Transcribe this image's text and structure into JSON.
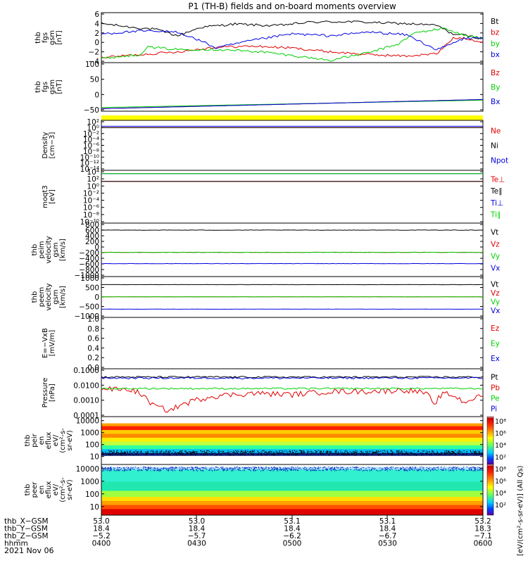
{
  "title": "P1 (TH-B) fields and on-board moments overview",
  "date": "2021 Nov 06",
  "colors": {
    "black": "#000000",
    "red": "#e00000",
    "green": "#00d000",
    "blue": "#0000e0",
    "yellow": "#ffff00"
  },
  "chart_data": [
    {
      "type": "line",
      "ylabel": [
        "thb",
        "fgs",
        "gsm",
        "[nT]"
      ],
      "ylim": [
        -4,
        6
      ],
      "yticks": [
        "6",
        "4",
        "2",
        "0",
        "−2",
        "−4"
      ],
      "series": [
        {
          "name": "Bt",
          "color": "black",
          "x": [
            0,
            0.08,
            0.14,
            0.2,
            0.26,
            0.35,
            0.45,
            0.55,
            0.65,
            0.75,
            0.82,
            0.88,
            0.92,
            0.96,
            1.0
          ],
          "values": [
            4.0,
            3.2,
            2.8,
            1.4,
            3.2,
            3.9,
            3.5,
            4.3,
            4.4,
            4.1,
            3.9,
            3.6,
            1.8,
            1.4,
            0.8
          ]
        },
        {
          "name": "bz",
          "color": "red",
          "x": [
            0,
            0.1,
            0.2,
            0.3,
            0.4,
            0.5,
            0.6,
            0.7,
            0.8,
            0.88,
            0.92,
            0.95,
            1.0
          ],
          "values": [
            -3.2,
            -2.6,
            -2.0,
            -1.0,
            -0.8,
            -1.2,
            -2.0,
            -2.6,
            -2.9,
            -2.4,
            0.8,
            1.0,
            0.0
          ]
        },
        {
          "name": "by",
          "color": "green",
          "x": [
            0,
            0.05,
            0.1,
            0.12,
            0.2,
            0.3,
            0.42,
            0.5,
            0.6,
            0.7,
            0.78,
            0.82,
            0.86,
            0.9,
            0.95,
            1.0
          ],
          "values": [
            -3.4,
            -3.0,
            -2.6,
            -1.0,
            -1.5,
            -1.5,
            -2.0,
            -2.8,
            -3.8,
            -2.2,
            -0.3,
            2.0,
            2.5,
            3.0,
            1.5,
            0.8
          ]
        },
        {
          "name": "bx",
          "color": "blue",
          "x": [
            0,
            0.1,
            0.2,
            0.27,
            0.3,
            0.4,
            0.5,
            0.6,
            0.7,
            0.8,
            0.88,
            0.95,
            1.0
          ],
          "values": [
            1.8,
            2.4,
            2.2,
            0.0,
            -1.2,
            0.5,
            1.8,
            1.4,
            2.2,
            1.6,
            -1.6,
            0.8,
            1.0
          ]
        }
      ]
    },
    {
      "type": "line",
      "ylabel": [
        "thb",
        "fgs",
        "gsm",
        "[nT]"
      ],
      "ylim": [
        -100,
        100
      ],
      "yticks": [
        "100",
        "50",
        "0",
        "−50"
      ],
      "series": [
        {
          "name": "Bz",
          "color": "red",
          "x": [
            0,
            1
          ],
          "values": [
            -95,
            -55
          ]
        },
        {
          "name": "By",
          "color": "green",
          "x": [
            0,
            1
          ],
          "values": [
            -90,
            -58
          ]
        },
        {
          "name": "Bx",
          "color": "blue",
          "x": [
            0,
            1
          ],
          "values": [
            -95,
            -55
          ]
        }
      ]
    },
    {
      "type": "heatmap",
      "ylabel": [],
      "note": "status bar",
      "color": "yellow"
    },
    {
      "type": "line",
      "ylabel": [
        "Density",
        "[cm−3]"
      ],
      "yscale": "log",
      "yticks": [
        "10²",
        "10⁰",
        "10⁻²",
        "10⁻⁴",
        "10⁻⁶",
        "10⁻⁸",
        "10⁻¹⁰",
        "10⁻¹²",
        "10⁻¹⁴"
      ],
      "series": [
        {
          "name": "Ne",
          "color": "red",
          "values": [
            1.0
          ]
        },
        {
          "name": "Ni",
          "color": "black",
          "values": [
            1.0
          ]
        },
        {
          "name": "Npot",
          "color": "blue",
          "values": [
            3.0
          ]
        }
      ]
    },
    {
      "type": "line",
      "ylabel": [
        "moqt3",
        "[eV]"
      ],
      "yscale": "log",
      "yticks": [
        "10⁴",
        "10²",
        "10⁰",
        "10⁻²",
        "10⁻⁴",
        "10⁻⁶",
        "10⁻⁸",
        "10⁻¹⁰"
      ],
      "series": [
        {
          "name": "Te⊥",
          "color": "red",
          "values": [
            20
          ]
        },
        {
          "name": "Te∥",
          "color": "black",
          "values": [
            20
          ]
        },
        {
          "name": "Ti⊥",
          "color": "blue",
          "values": [
            3000
          ]
        },
        {
          "name": "Ti∥",
          "color": "green",
          "values": [
            3000
          ]
        }
      ]
    },
    {
      "type": "line",
      "ylabel": [
        "thb",
        "peim",
        "velocity",
        "gsm",
        "[km/s]"
      ],
      "ylim": [
        -1000,
        800
      ],
      "yticks": [
        "800",
        "600",
        "400",
        "200",
        "0",
        "−200",
        "−400",
        "−600",
        "−800",
        "−1000"
      ],
      "series": [
        {
          "name": "Vt",
          "color": "black",
          "values": [
            600
          ]
        },
        {
          "name": "Vz",
          "color": "red",
          "values": [
            -190
          ]
        },
        {
          "name": "Vy",
          "color": "green",
          "values": [
            -190
          ]
        },
        {
          "name": "Vx",
          "color": "blue",
          "values": [
            -590
          ]
        }
      ]
    },
    {
      "type": "line",
      "ylabel": [
        "thb",
        "peem",
        "velocity",
        "gsm",
        "[km/s]"
      ],
      "ylim": [
        -1000,
        1000
      ],
      "yticks": [
        "1000",
        "500",
        "0",
        "−500",
        "−1000"
      ],
      "series": [
        {
          "name": "Vt",
          "color": "black",
          "values": [
            650
          ]
        },
        {
          "name": "Vz",
          "color": "red",
          "values": [
            10
          ]
        },
        {
          "name": "Vy",
          "color": "green",
          "values": [
            10
          ]
        },
        {
          "name": "Vx",
          "color": "blue",
          "values": [
            -640
          ]
        }
      ]
    },
    {
      "type": "line",
      "ylabel": [
        "E=−VxB",
        "[mV/m]"
      ],
      "ylim": [
        0.0,
        1.0
      ],
      "yticks": [
        "1.0",
        "0.8",
        "0.6",
        "0.4",
        "0.2",
        "0.0"
      ],
      "series": [
        {
          "name": "Ez",
          "color": "red",
          "values": []
        },
        {
          "name": "Ey",
          "color": "green",
          "values": []
        },
        {
          "name": "Ex",
          "color": "blue",
          "values": []
        }
      ]
    },
    {
      "type": "line",
      "ylabel": [
        "Pressure",
        "[nPa]"
      ],
      "yscale": "log",
      "ylim": [
        0.0001,
        0.1
      ],
      "yticks": [
        "0.1000",
        "0.0100",
        "0.0010",
        "0.0001"
      ],
      "series": [
        {
          "name": "Pt",
          "color": "black",
          "values": [
            0.035
          ]
        },
        {
          "name": "Pb",
          "color": "red",
          "x": [
            0,
            0.08,
            0.12,
            0.14,
            0.18,
            0.22,
            0.3,
            0.4,
            0.5,
            0.6,
            0.7,
            0.8,
            0.85,
            0.87,
            0.9,
            0.95,
            1.0
          ],
          "values": [
            0.006,
            0.005,
            0.001,
            0.0004,
            0.0002,
            0.0006,
            0.002,
            0.003,
            0.0025,
            0.004,
            0.004,
            0.005,
            0.003,
            0.0002,
            0.003,
            0.0007,
            0.002
          ]
        },
        {
          "name": "Pe",
          "color": "green",
          "values": [
            0.006
          ]
        },
        {
          "name": "Pi",
          "color": "blue",
          "values": [
            0.03
          ]
        }
      ]
    },
    {
      "type": "heatmap",
      "ylabel": [
        "thb",
        "peir",
        "en",
        "eflux",
        "eV/",
        "(cm²-s-",
        "sr-eV)"
      ],
      "yscale": "log",
      "yticks": [
        "10000",
        "1000",
        "100",
        "10"
      ]
    },
    {
      "type": "heatmap",
      "ylabel": [
        "thb",
        "peer",
        "en",
        "eflux",
        "eV/",
        "(cm²-s-",
        "sr-eV)"
      ],
      "yscale": "log",
      "yticks": [
        "10000",
        "1000",
        "100",
        "10"
      ]
    }
  ],
  "colorbar": {
    "ticks": [
      "10⁸",
      "10⁶",
      "10⁴",
      "10²",
      "10⁸",
      "10⁶",
      "10⁴",
      "10²"
    ],
    "label": "[eV/(cm²-s-sr-eV)] (All Qs)",
    "label2": "[eV/(cm²-s-sr-eV)]"
  },
  "x_axis": {
    "rows": [
      {
        "label": "thb_X−GSM",
        "values": [
          "53.0",
          "53.0",
          "53.1",
          "53.1",
          "53.2"
        ]
      },
      {
        "label": "thb_Y−GSM",
        "values": [
          "18.4",
          "18.4",
          "18.4",
          "18.4",
          "18.3"
        ]
      },
      {
        "label": "thb_Z−GSM",
        "values": [
          "−5.2",
          "−5.7",
          "−6.2",
          "−6.7",
          "−7.1"
        ]
      },
      {
        "label": "hhmm",
        "values": [
          "0400",
          "0430",
          "0500",
          "0530",
          "0600"
        ]
      }
    ]
  }
}
